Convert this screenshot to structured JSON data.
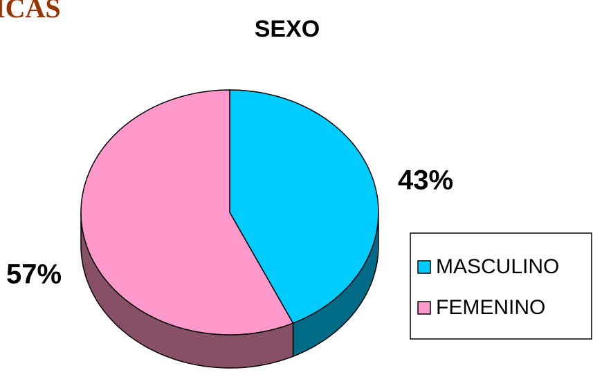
{
  "page_heading": "ICAS",
  "chart_data": {
    "type": "pie",
    "title": "SEXO",
    "categories": [
      "MASCULINO",
      "FEMENINO"
    ],
    "values": [
      43,
      57
    ],
    "value_labels": [
      "43%",
      "57%"
    ],
    "colors": [
      "#00ccff",
      "#ff99cc"
    ],
    "side_colors": [
      "#006b87",
      "#875066"
    ],
    "legend": "right"
  }
}
